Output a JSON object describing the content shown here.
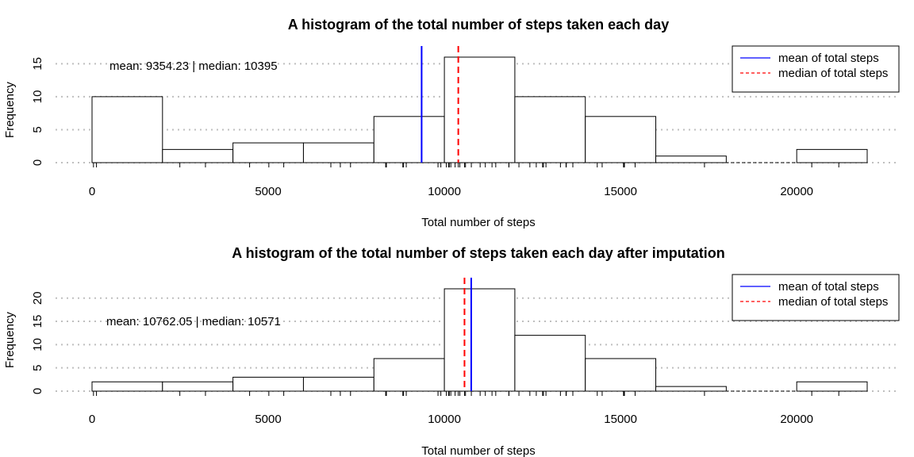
{
  "chart_data": [
    {
      "type": "bar",
      "title": "A histogram of the total number of steps taken each day",
      "xlabel": "Total number of steps",
      "ylabel": "Frequency",
      "xlim": [
        0,
        22000
      ],
      "ylim": [
        0,
        16
      ],
      "x_ticks": [
        "0",
        "5000",
        "10000",
        "15000",
        "20000"
      ],
      "y_ticks": [
        "0",
        "5",
        "10",
        "15"
      ],
      "grid": "horizontal dotted",
      "bins": [
        {
          "from": 0,
          "to": 2000,
          "count": 10
        },
        {
          "from": 2000,
          "to": 4000,
          "count": 2
        },
        {
          "from": 4000,
          "to": 6000,
          "count": 3
        },
        {
          "from": 6000,
          "to": 8000,
          "count": 3
        },
        {
          "from": 8000,
          "to": 10000,
          "count": 7
        },
        {
          "from": 10000,
          "to": 12000,
          "count": 16
        },
        {
          "from": 12000,
          "to": 14000,
          "count": 10
        },
        {
          "from": 14000,
          "to": 16000,
          "count": 7
        },
        {
          "from": 16000,
          "to": 18000,
          "count": 1
        },
        {
          "from": 18000,
          "to": 20000,
          "count": 0
        },
        {
          "from": 20000,
          "to": 22000,
          "count": 2
        }
      ],
      "mean": 9354.23,
      "median": 10395,
      "annotation": "mean: 9354.23 | median: 10395",
      "legend": {
        "position": "top-right",
        "items": [
          {
            "label": "mean of total steps",
            "color": "#0000ff",
            "style": "solid"
          },
          {
            "label": "median of total steps",
            "color": "#ff0000",
            "style": "dashed"
          }
        ]
      },
      "mean_line_style": "solid",
      "median_line_style": "dashed",
      "rug": true
    },
    {
      "type": "bar",
      "title": "A histogram of the total number of steps taken each day after imputation",
      "xlabel": "Total number of steps",
      "ylabel": "Frequency",
      "xlim": [
        0,
        22000
      ],
      "ylim": [
        0,
        22
      ],
      "x_ticks": [
        "0",
        "5000",
        "10000",
        "15000",
        "20000"
      ],
      "y_ticks": [
        "0",
        "5",
        "10",
        "15",
        "20"
      ],
      "grid": "horizontal dotted",
      "bins": [
        {
          "from": 0,
          "to": 2000,
          "count": 2
        },
        {
          "from": 2000,
          "to": 4000,
          "count": 2
        },
        {
          "from": 4000,
          "to": 6000,
          "count": 3
        },
        {
          "from": 6000,
          "to": 8000,
          "count": 3
        },
        {
          "from": 8000,
          "to": 10000,
          "count": 7
        },
        {
          "from": 10000,
          "to": 12000,
          "count": 22
        },
        {
          "from": 12000,
          "to": 14000,
          "count": 12
        },
        {
          "from": 14000,
          "to": 16000,
          "count": 7
        },
        {
          "from": 16000,
          "to": 18000,
          "count": 1
        },
        {
          "from": 18000,
          "to": 20000,
          "count": 0
        },
        {
          "from": 20000,
          "to": 22000,
          "count": 2
        }
      ],
      "mean": 10762.05,
      "median": 10571,
      "annotation": "mean: 10762.05 | median: 10571",
      "legend": {
        "position": "top-right",
        "items": [
          {
            "label": "mean of total steps",
            "color": "#0000ff",
            "style": "solid"
          },
          {
            "label": "median of total steps",
            "color": "#ff0000",
            "style": "dashed"
          }
        ]
      },
      "mean_line_style": "solid",
      "median_line_style": "dashed",
      "rug": true
    }
  ],
  "rug_values": [
    41,
    126,
    2492,
    3219,
    4472,
    5018,
    5441,
    6778,
    7047,
    7336,
    8334,
    8355,
    8821,
    8841,
    8918,
    9819,
    9900,
    10056,
    10119,
    10139,
    10183,
    10304,
    10395,
    10439,
    10571,
    10600,
    10765,
    11015,
    11162,
    11352,
    11458,
    11829,
    11834,
    12116,
    12426,
    12608,
    12787,
    12811,
    12883,
    13294,
    13452,
    13460,
    13646,
    14339,
    14478,
    15084,
    15098,
    15110,
    15414,
    17382,
    20427,
    21194
  ]
}
